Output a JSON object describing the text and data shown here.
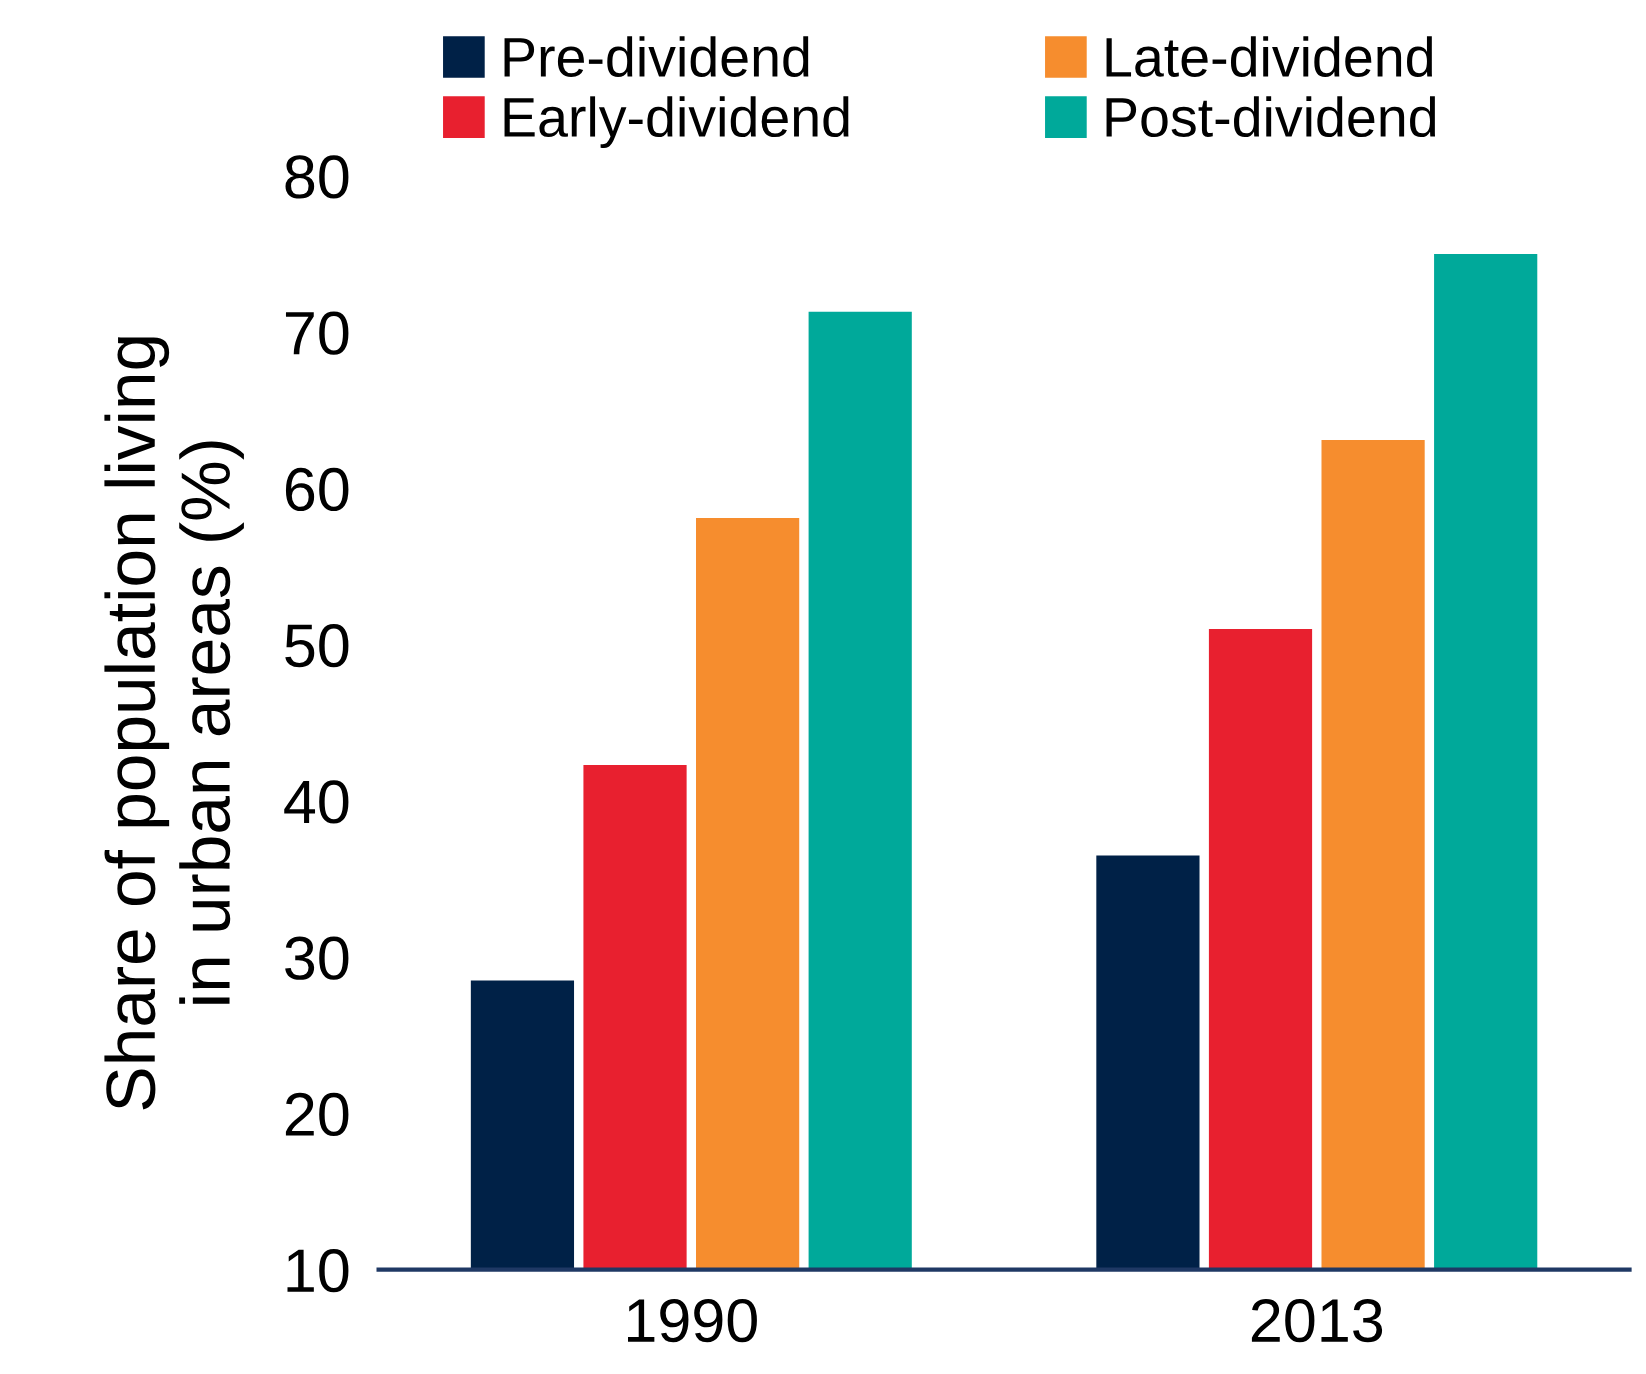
{
  "chart_data": {
    "type": "bar",
    "ylabel": "Share of population living\nin urban areas (%)",
    "categories": [
      "1990",
      "2013"
    ],
    "series": [
      {
        "name": "Pre-dividend",
        "color": "#002147",
        "values": [
          28.5,
          36.5
        ]
      },
      {
        "name": "Early-dividend",
        "color": "#e8202f",
        "values": [
          42.3,
          51
        ]
      },
      {
        "name": "Late-dividend",
        "color": "#f68d2e",
        "values": [
          58.1,
          63.1
        ]
      },
      {
        "name": "Post-dividend",
        "color": "#00a99a",
        "values": [
          71.3,
          75
        ]
      }
    ],
    "ylim": [
      10,
      80
    ],
    "yticks": [
      10,
      20,
      30,
      40,
      50,
      60,
      70,
      80
    ],
    "grid": false,
    "legend": "top"
  }
}
